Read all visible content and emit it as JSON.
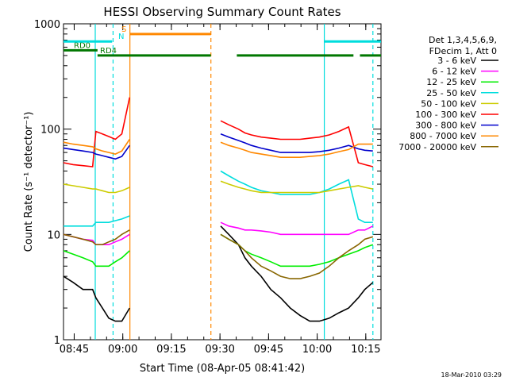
{
  "chart_data": {
    "type": "line",
    "title": "HESSI Observing Summary Count Rates",
    "xlabel": "Start Time (08-Apr-05 08:41:42)",
    "ylabel": "Count Rate (s⁻¹ detector⁻¹)",
    "yscale": "log",
    "ylim": [
      1,
      1000
    ],
    "y_ticks": [
      "1",
      "10",
      "100",
      "1000"
    ],
    "x_ticks": [
      "08:45",
      "09:00",
      "09:15",
      "09:30",
      "09:45",
      "10:00",
      "10:15"
    ],
    "x_tick_minutes": [
      3.3,
      18.3,
      33.3,
      48.3,
      63.3,
      78.3,
      93.3
    ],
    "xlim_minutes": [
      0,
      98
    ],
    "legend_header": [
      "Det 1,3,4,5,6,9,",
      "FDecim 1, Att 0"
    ],
    "legend_position": "right",
    "footer": "18-Mar-2010 03:29",
    "flags": [
      {
        "label": "RD0",
        "color": "#007700",
        "segments": [
          [
            0,
            10.5
          ]
        ],
        "y": 560
      },
      {
        "label": "RD4",
        "color": "#007700",
        "segments": [
          [
            10.5,
            45.5
          ],
          [
            53.5,
            89.5
          ],
          [
            91.5,
            98
          ]
        ],
        "y": 500
      },
      {
        "label": "S",
        "color": "#ff8800",
        "segments": [
          [
            20.5,
            45.5
          ]
        ],
        "y": 800
      },
      {
        "label": "N",
        "color": "#00dddd",
        "segments": [
          [
            0,
            15
          ],
          [
            80.5,
            98
          ]
        ],
        "y": 680
      }
    ],
    "vertical_lines": [
      {
        "minute": 9.8,
        "color": "#00dddd",
        "style": "solid"
      },
      {
        "minute": 15.3,
        "color": "#00dddd",
        "style": "dashed"
      },
      {
        "minute": 20.5,
        "color": "#ff8800",
        "style": "solid"
      },
      {
        "minute": 45.5,
        "color": "#ff8800",
        "style": "dashed"
      },
      {
        "minute": 80.5,
        "color": "#00dddd",
        "style": "solid"
      },
      {
        "minute": 95.5,
        "color": "#00dddd",
        "style": "dashed"
      }
    ],
    "series": [
      {
        "name": "3 - 6 keV",
        "color": "#000000",
        "segments": [
          {
            "x": [
              0,
              3,
              6,
              9,
              10,
              12,
              14,
              16,
              18,
              20.4
            ],
            "y": [
              4,
              3.5,
              3,
              3,
              2.5,
              2,
              1.6,
              1.5,
              1.5,
              2
            ]
          },
          {
            "x": [
              48.5,
              51,
              54,
              56,
              58,
              61,
              64,
              67,
              70,
              73,
              76,
              79,
              82,
              85,
              88,
              91,
              93,
              95.5
            ],
            "y": [
              12,
              10,
              8,
              6,
              5,
              4,
              3,
              2.5,
              2,
              1.7,
              1.5,
              1.5,
              1.6,
              1.8,
              2,
              2.5,
              3,
              3.5
            ]
          }
        ]
      },
      {
        "name": "6 - 12 keV",
        "color": "#ff00ff",
        "segments": [
          {
            "x": [
              0,
              3,
              6,
              9,
              10,
              12,
              14,
              16,
              18,
              20.4
            ],
            "y": [
              10,
              9.5,
              9,
              8.8,
              8,
              8,
              8,
              8.5,
              9,
              10
            ]
          },
          {
            "x": [
              48.5,
              51,
              54,
              56,
              58,
              61,
              64,
              67,
              70,
              73,
              76,
              79,
              82,
              85,
              88,
              91,
              93,
              95.5
            ],
            "y": [
              13,
              12,
              11.5,
              11,
              11,
              10.8,
              10.5,
              10,
              10,
              10,
              10,
              10,
              10,
              10,
              10,
              11,
              11,
              12
            ]
          }
        ]
      },
      {
        "name": "12 - 25 keV",
        "color": "#00ee00",
        "segments": [
          {
            "x": [
              0,
              3,
              6,
              9,
              10,
              12,
              14,
              16,
              18,
              20.4
            ],
            "y": [
              7,
              6.5,
              6,
              5.5,
              5,
              5,
              5,
              5.5,
              6,
              7
            ]
          },
          {
            "x": [
              48.5,
              51,
              54,
              56,
              58,
              61,
              64,
              67,
              70,
              73,
              76,
              79,
              82,
              85,
              88,
              91,
              93,
              95.5
            ],
            "y": [
              10,
              9,
              8,
              7,
              6.5,
              6,
              5.5,
              5,
              5,
              5,
              5,
              5.2,
              5.5,
              6,
              6.5,
              7,
              7.5,
              8
            ]
          }
        ]
      },
      {
        "name": "25 - 50 keV",
        "color": "#00dddd",
        "segments": [
          {
            "x": [
              0,
              3,
              6,
              9,
              10,
              12,
              14,
              16,
              18,
              20.4
            ],
            "y": [
              12,
              12,
              12,
              12,
              13,
              13,
              13,
              13.5,
              14,
              15
            ]
          },
          {
            "x": [
              48.5,
              51,
              54,
              56,
              58,
              61,
              64,
              67,
              70,
              73,
              76,
              79,
              82,
              85,
              88,
              91,
              93,
              95.5
            ],
            "y": [
              40,
              36,
              32,
              30,
              28,
              26,
              25,
              24,
              24,
              24,
              24,
              25,
              27,
              30,
              33,
              14,
              13,
              13
            ]
          }
        ]
      },
      {
        "name": "50 - 100 keV",
        "color": "#cccc00",
        "segments": [
          {
            "x": [
              0,
              3,
              6,
              9,
              10,
              12,
              14,
              16,
              18,
              20.4
            ],
            "y": [
              30,
              29,
              28,
              27,
              27,
              26,
              25,
              25,
              26,
              28
            ]
          },
          {
            "x": [
              48.5,
              51,
              54,
              56,
              58,
              61,
              64,
              67,
              70,
              73,
              76,
              79,
              82,
              85,
              88,
              91,
              93,
              95.5
            ],
            "y": [
              32,
              30,
              28,
              27,
              26,
              25,
              25,
              25,
              25,
              25,
              25,
              25,
              26,
              27,
              28,
              29,
              28,
              27
            ]
          }
        ]
      },
      {
        "name": "100 - 300 keV",
        "color": "#ff0000",
        "segments": [
          {
            "x": [
              0,
              3,
              6,
              9,
              10,
              12,
              14,
              16,
              18,
              20.4
            ],
            "y": [
              48,
              46,
              45,
              44,
              95,
              90,
              85,
              80,
              90,
              200
            ]
          },
          {
            "x": [
              48.5,
              51,
              54,
              56,
              58,
              61,
              64,
              67,
              70,
              73,
              76,
              79,
              82,
              85,
              88,
              91,
              93,
              95.5
            ],
            "y": [
              120,
              110,
              100,
              92,
              88,
              84,
              82,
              80,
              80,
              80,
              82,
              84,
              88,
              95,
              105,
              48,
              46,
              44
            ]
          }
        ]
      },
      {
        "name": "300 - 800 keV",
        "color": "#0000cc",
        "segments": [
          {
            "x": [
              0,
              3,
              6,
              9,
              10,
              12,
              14,
              16,
              18,
              20.4
            ],
            "y": [
              66,
              64,
              62,
              60,
              58,
              56,
              54,
              52,
              55,
              70
            ]
          },
          {
            "x": [
              48.5,
              51,
              54,
              56,
              58,
              61,
              64,
              67,
              70,
              73,
              76,
              79,
              82,
              85,
              88,
              91,
              93,
              95.5
            ],
            "y": [
              90,
              84,
              78,
              74,
              70,
              66,
              63,
              60,
              60,
              60,
              60,
              61,
              63,
              66,
              70,
              65,
              63,
              62
            ]
          }
        ]
      },
      {
        "name": "800 - 7000 keV",
        "color": "#ff8800",
        "segments": [
          {
            "x": [
              0,
              3,
              6,
              9,
              10,
              12,
              14,
              16,
              18,
              20.4
            ],
            "y": [
              75,
              72,
              70,
              68,
              65,
              62,
              60,
              58,
              62,
              80
            ]
          },
          {
            "x": [
              48.5,
              51,
              54,
              56,
              58,
              61,
              64,
              67,
              70,
              73,
              76,
              79,
              82,
              85,
              88,
              91,
              93,
              95.5
            ],
            "y": [
              75,
              70,
              66,
              63,
              60,
              58,
              56,
              54,
              54,
              54,
              55,
              56,
              58,
              61,
              64,
              72,
              72,
              72
            ]
          }
        ]
      },
      {
        "name": "7000 - 20000 keV",
        "color": "#886600",
        "segments": [
          {
            "x": [
              0,
              3,
              6,
              9,
              10,
              12,
              14,
              16,
              18,
              20.4
            ],
            "y": [
              10,
              9.5,
              9,
              8.5,
              8,
              8,
              8.5,
              9,
              10,
              11
            ]
          },
          {
            "x": [
              48.5,
              51,
              54,
              56,
              58,
              61,
              64,
              67,
              70,
              73,
              76,
              79,
              82,
              85,
              88,
              91,
              93,
              95.5
            ],
            "y": [
              10,
              9,
              8,
              7,
              6,
              5,
              4.5,
              4,
              3.8,
              3.8,
              4,
              4.3,
              5,
              6,
              7,
              8,
              9,
              9.5
            ]
          }
        ]
      }
    ]
  }
}
